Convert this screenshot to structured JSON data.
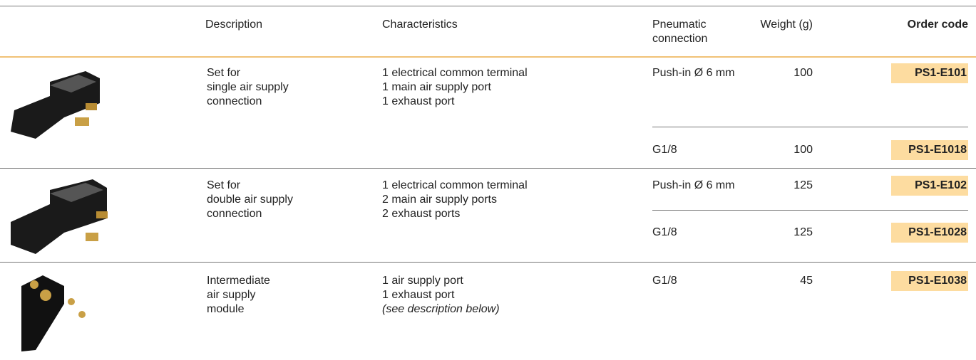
{
  "table": {
    "headers": {
      "description": "Description",
      "characteristics": "Characteristics",
      "connection": "Pneumatic connection",
      "weight": "Weight (g)",
      "order_code": "Order code"
    },
    "groups": [
      {
        "description": [
          "Set for",
          "single air supply",
          "connection"
        ],
        "characteristics": [
          "1 electrical common terminal",
          "1 main air supply port",
          "1 exhaust port"
        ],
        "variants": [
          {
            "connection": "Push-in Ø 6 mm",
            "weight": 100,
            "order_code": "PS1-E101"
          },
          {
            "connection": "G1/8",
            "weight": 100,
            "order_code": "PS1-E1018"
          }
        ]
      },
      {
        "description": [
          "Set for",
          "double air supply",
          "connection"
        ],
        "characteristics": [
          "1 electrical common terminal",
          "2 main air supply ports",
          "2 exhaust ports"
        ],
        "variants": [
          {
            "connection": "Push-in Ø 6 mm",
            "weight": 125,
            "order_code": "PS1-E102"
          },
          {
            "connection": "G1/8",
            "weight": 125,
            "order_code": "PS1-E1028"
          }
        ]
      },
      {
        "description": [
          "Intermediate",
          "air supply",
          "module"
        ],
        "characteristics": [
          "1 air supply port",
          "1 exhaust port",
          "(see description below)"
        ],
        "variants": [
          {
            "connection": "G1/8",
            "weight": 45,
            "order_code": "PS1-E1038"
          }
        ]
      }
    ]
  }
}
